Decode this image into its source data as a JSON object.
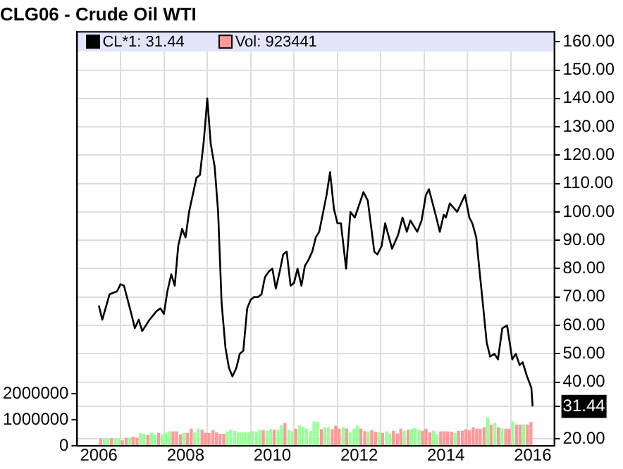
{
  "chart_data": {
    "type": "line",
    "title": "CLG06 - Crude Oil WTI",
    "xlim": [
      2006,
      2016
    ],
    "xticks": [
      2006,
      {
        "value": 2007,
        "label": null
      },
      2008,
      {
        "value": 2009,
        "label": null
      },
      2010,
      {
        "value": 2011,
        "label": null
      },
      2012,
      {
        "value": 2013,
        "label": null
      },
      2014,
      {
        "value": 2015,
        "label": null
      },
      2016
    ],
    "ylim": [
      17.5,
      163.5
    ],
    "yticks": [
      {
        "value": 20,
        "label": "20.00"
      },
      {
        "value": 31.44,
        "label": "31.44"
      },
      {
        "value": 40,
        "label": "40.00"
      },
      {
        "value": 50,
        "label": "50.00"
      },
      {
        "value": 60,
        "label": "60.00"
      },
      {
        "value": 70,
        "label": "70.00"
      },
      {
        "value": 80,
        "label": "80.00"
      },
      {
        "value": 90,
        "label": "90.00"
      },
      {
        "value": 100,
        "label": "100.00"
      },
      {
        "value": 110,
        "label": "110.00"
      },
      {
        "value": 120,
        "label": "120.00"
      },
      {
        "value": 130,
        "label": "130.00"
      },
      {
        "value": 140,
        "label": "140.00"
      },
      {
        "value": 150,
        "label": "150.00"
      },
      {
        "value": 160,
        "label": "160.00"
      }
    ],
    "y2lim": [
      0,
      15900000
    ],
    "y2ticks": [
      0,
      1000000,
      2000000
    ],
    "grid": true,
    "legend": "top left",
    "marker": "none",
    "series": [
      {
        "name": "CL*1: 31.44",
        "color": "#000000",
        "x": [
          2006.0,
          2006.08,
          2006.25,
          2006.42,
          2006.5,
          2006.58,
          2006.75,
          2006.83,
          2006.92,
          2007.0,
          2007.17,
          2007.33,
          2007.42,
          2007.5,
          2007.58,
          2007.67,
          2007.75,
          2007.83,
          2007.92,
          2008.0,
          2008.08,
          2008.25,
          2008.33,
          2008.42,
          2008.5,
          2008.58,
          2008.67,
          2008.75,
          2008.83,
          2008.92,
          2009.0,
          2009.08,
          2009.17,
          2009.25,
          2009.33,
          2009.42,
          2009.5,
          2009.58,
          2009.67,
          2009.75,
          2009.83,
          2009.92,
          2010.0,
          2010.08,
          2010.17,
          2010.25,
          2010.33,
          2010.42,
          2010.5,
          2010.58,
          2010.67,
          2010.75,
          2010.83,
          2010.92,
          2011.0,
          2011.08,
          2011.25,
          2011.33,
          2011.42,
          2011.5,
          2011.58,
          2011.7,
          2011.8,
          2011.9,
          2012.1,
          2012.2,
          2012.35,
          2012.42,
          2012.52,
          2012.6,
          2012.76,
          2012.9,
          2013.0,
          2013.1,
          2013.18,
          2013.34,
          2013.44,
          2013.54,
          2013.61,
          2013.78,
          2013.86,
          2013.95,
          2014.0,
          2014.09,
          2014.26,
          2014.44,
          2014.54,
          2014.61,
          2014.7,
          2014.77,
          2014.85,
          2014.94,
          2015.02,
          2015.12,
          2015.2,
          2015.3,
          2015.41,
          2015.53,
          2015.61,
          2015.7,
          2015.77,
          2015.87,
          2015.97,
          2016.0
        ],
        "values": [
          67,
          62,
          71,
          72,
          74.5,
          74,
          64,
          59,
          62,
          58,
          62,
          65,
          66,
          64,
          72,
          78,
          74,
          88,
          94,
          91,
          100,
          112,
          113,
          125,
          140,
          124,
          116,
          100,
          68,
          52,
          45,
          42,
          45,
          50,
          51,
          66,
          69,
          70,
          70,
          71,
          77,
          79,
          80,
          73,
          79,
          85,
          86,
          74,
          75,
          80,
          74,
          81,
          83,
          86,
          91,
          93,
          106,
          114,
          101,
          96,
          96,
          80,
          100,
          98,
          107,
          104,
          86,
          85,
          88,
          96,
          87,
          92,
          98,
          93,
          97,
          93,
          97,
          106,
          108,
          98,
          93,
          99,
          98,
          103,
          100,
          106,
          98,
          96,
          91,
          80,
          68,
          54,
          49,
          50,
          48,
          59,
          60,
          48,
          50,
          46,
          47,
          42,
          38,
          31.44
        ]
      },
      {
        "name": "Vol: 923441",
        "type": "bar",
        "axis": "y2",
        "color": "#ff9999",
        "x": [
          2006.04,
          2006.13,
          2006.21,
          2006.29,
          2006.38,
          2006.46,
          2006.54,
          2006.63,
          2006.71,
          2006.79,
          2006.88,
          2006.96,
          2007.04,
          2007.13,
          2007.21,
          2007.29,
          2007.38,
          2007.46,
          2007.54,
          2007.63,
          2007.71,
          2007.79,
          2007.88,
          2007.96,
          2008.04,
          2008.13,
          2008.21,
          2008.29,
          2008.38,
          2008.46,
          2008.54,
          2008.63,
          2008.71,
          2008.79,
          2008.88,
          2008.96,
          2009.04,
          2009.13,
          2009.21,
          2009.29,
          2009.38,
          2009.46,
          2009.54,
          2009.63,
          2009.71,
          2009.79,
          2009.88,
          2009.96,
          2010.04,
          2010.13,
          2010.21,
          2010.29,
          2010.38,
          2010.46,
          2010.54,
          2010.63,
          2010.71,
          2010.79,
          2010.88,
          2010.96,
          2011.04,
          2011.13,
          2011.21,
          2011.29,
          2011.38,
          2011.46,
          2011.54,
          2011.63,
          2011.71,
          2011.79,
          2011.88,
          2011.96,
          2012.04,
          2012.13,
          2012.21,
          2012.29,
          2012.38,
          2012.46,
          2012.54,
          2012.63,
          2012.71,
          2012.79,
          2012.88,
          2012.96,
          2013.04,
          2013.13,
          2013.21,
          2013.29,
          2013.38,
          2013.46,
          2013.54,
          2013.63,
          2013.71,
          2013.79,
          2013.88,
          2013.96,
          2014.04,
          2014.13,
          2014.21,
          2014.29,
          2014.38,
          2014.46,
          2014.54,
          2014.63,
          2014.71,
          2014.79,
          2014.88,
          2014.96,
          2015.04,
          2015.13,
          2015.21,
          2015.29,
          2015.38,
          2015.46,
          2015.54,
          2015.63,
          2015.71,
          2015.79,
          2015.88,
          2015.96
        ],
        "values": [
          270000,
          270000,
          270000,
          270000,
          250000,
          250000,
          200000,
          300000,
          300000,
          330000,
          300000,
          480000,
          450000,
          400000,
          480000,
          420000,
          480000,
          430000,
          480000,
          540000,
          540000,
          540000,
          430000,
          480000,
          480000,
          640000,
          500000,
          640000,
          600000,
          480000,
          480000,
          580000,
          500000,
          450000,
          450000,
          540000,
          600000,
          560000,
          500000,
          500000,
          500000,
          500000,
          550000,
          540000,
          600000,
          580000,
          560000,
          620000,
          600000,
          600000,
          780000,
          860000,
          600000,
          550000,
          640000,
          760000,
          700000,
          640000,
          560000,
          920000,
          900000,
          620000,
          700000,
          700000,
          620000,
          760000,
          640000,
          700000,
          650000,
          500000,
          640000,
          760000,
          640000,
          540000,
          540000,
          580000,
          520000,
          500000,
          480000,
          540000,
          460000,
          560000,
          460000,
          640000,
          560000,
          600000,
          620000,
          680000,
          600000,
          560000,
          640000,
          500000,
          560000,
          440000,
          540000,
          540000,
          540000,
          520000,
          480000,
          560000,
          560000,
          620000,
          580000,
          700000,
          640000,
          640000,
          700000,
          1080000,
          800000,
          860000,
          700000,
          660000,
          640000,
          640000,
          920000,
          800000,
          800000,
          800000,
          800000,
          900000
        ],
        "colors": [
          "#ff9999",
          "#99ff99",
          "#99ff99",
          "#ff9999",
          "#99ff99",
          "#99ff99",
          "#ff9999",
          "#ff9999",
          "#99ff99",
          "#ff9999",
          "#ff9999",
          "#99ff99",
          "#99ff99",
          "#ff9999",
          "#99ff99",
          "#99ff99",
          "#ff9999",
          "#99ff99",
          "#99ff99",
          "#99ff99",
          "#ff9999",
          "#ff9999",
          "#ff9999",
          "#99ff99",
          "#ff9999",
          "#ff9999",
          "#99ff99",
          "#99ff99",
          "#ff9999",
          "#ff9999",
          "#ff9999",
          "#ff9999",
          "#ff9999",
          "#ff9999",
          "#ff9999",
          "#99ff99",
          "#99ff99",
          "#99ff99",
          "#99ff99",
          "#99ff99",
          "#99ff99",
          "#99ff99",
          "#99ff99",
          "#99ff99",
          "#99ff99",
          "#ff9999",
          "#99ff99",
          "#99ff99",
          "#ff9999",
          "#99ff99",
          "#99ff99",
          "#ff9999",
          "#99ff99",
          "#99ff99",
          "#ff9999",
          "#99ff99",
          "#99ff99",
          "#99ff99",
          "#99ff99",
          "#99ff99",
          "#99ff99",
          "#ff9999",
          "#99ff99",
          "#99ff99",
          "#ff9999",
          "#ff9999",
          "#ff9999",
          "#99ff99",
          "#ff9999",
          "#99ff99",
          "#99ff99",
          "#99ff99",
          "#ff9999",
          "#ff9999",
          "#99ff99",
          "#ff9999",
          "#ff9999",
          "#99ff99",
          "#ff9999",
          "#99ff99",
          "#99ff99",
          "#ff9999",
          "#ff9999",
          "#ff9999",
          "#99ff99",
          "#ff9999",
          "#99ff99",
          "#99ff99",
          "#99ff99",
          "#ff9999",
          "#ff9999",
          "#ff9999",
          "#99ff99",
          "#99ff99",
          "#ff9999",
          "#ff9999",
          "#ff9999",
          "#ff9999",
          "#99ff99",
          "#ff9999",
          "#ff9999",
          "#ff9999",
          "#ff9999",
          "#ff9999",
          "#ff9999",
          "#ff9999",
          "#ff9999",
          "#99ff99",
          "#ff9999",
          "#99ff99",
          "#ff9999",
          "#99ff99",
          "#ff9999",
          "#ff9999",
          "#99ff99",
          "#ff9999",
          "#ff9999",
          "#99ff99",
          "#ff9999",
          "#ff9999"
        ]
      }
    ]
  }
}
